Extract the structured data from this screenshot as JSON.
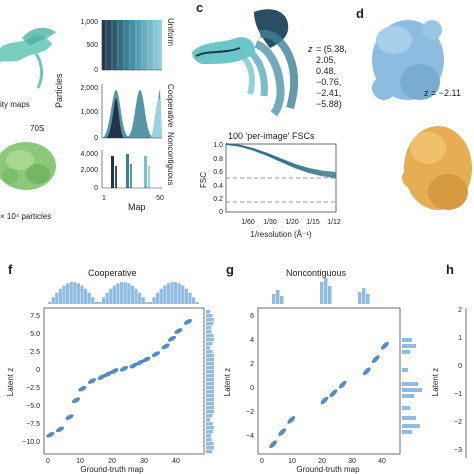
{
  "panels": {
    "b": {
      "ylabel": "Particles",
      "xlabel": "Map",
      "row_labels": [
        "Uniform",
        "Cooperative",
        "Noncontiguous"
      ],
      "uniform_ticks": [
        "1,000",
        "500",
        "0"
      ],
      "cooperative_ticks": [
        "2,000",
        "1,000",
        "0"
      ],
      "noncontiguous_ticks": [
        "4,000",
        "2,000",
        "0"
      ],
      "x_ticks": [
        "1",
        "50"
      ]
    },
    "a_partial": {
      "text_maps": "ity maps",
      "text_70s": "70S",
      "text_particles": "× 10⁴ particles"
    },
    "c": {
      "letter": "c",
      "z_label": "z",
      "z_values": "= (5.38,\n2.05,\n0.48,\n−0.76,\n−2.41,\n−5.88)",
      "fsc_title": "100 'per-image' FSCs",
      "fsc_ylabel": "FSC",
      "fsc_xlabel": "1/resolution (Å⁻¹)",
      "fsc_yticks": [
        "1.0",
        "0.8",
        "0.6",
        "0.4",
        "0.2",
        "0"
      ],
      "fsc_xticks": [
        "1/60",
        "1/30",
        "1/20",
        "1/15",
        "1/12"
      ]
    },
    "d": {
      "letter": "d",
      "z_text": "z = −2.11"
    },
    "f": {
      "letter": "f",
      "title": "Cooperative",
      "ylabel": "Latent z",
      "xlabel": "Ground-truth map",
      "yticks": [
        "7.5",
        "5.0",
        "2.5",
        "0",
        "−2.5",
        "−5.0",
        "−7.5",
        "−10.0"
      ],
      "xticks": [
        "0",
        "10",
        "20",
        "30",
        "40"
      ]
    },
    "g": {
      "letter": "g",
      "title": "Noncontiguous",
      "ylabel": "Latent z",
      "xlabel": "Ground-truth map",
      "yticks": [
        "6",
        "4",
        "2",
        "0",
        "−2",
        "−4"
      ],
      "xticks": [
        "0",
        "10",
        "20",
        "30",
        "40"
      ]
    },
    "h": {
      "letter": "h",
      "ylabel": "Latent z",
      "yticks": [
        "2",
        "1",
        "0",
        "−1",
        "−2",
        "−3"
      ]
    }
  },
  "chart_data": [
    {
      "type": "scatter",
      "title": "Cooperative",
      "xlabel": "Ground-truth map",
      "ylabel": "Latent z",
      "xlim": [
        0,
        50
      ],
      "ylim": [
        -11,
        8
      ],
      "x": [
        2,
        5,
        8,
        10,
        12,
        15,
        18,
        20,
        22,
        25,
        28,
        30,
        32,
        35,
        38,
        40,
        42,
        45
      ],
      "y": [
        -8.5,
        -7.8,
        -6.2,
        -4.0,
        -2.5,
        -1.5,
        -1.0,
        -0.6,
        -0.2,
        0.1,
        0.5,
        0.9,
        1.3,
        2.0,
        3.0,
        4.0,
        5.0,
        6.2
      ],
      "color": "#3a78b4"
    },
    {
      "type": "scatter",
      "title": "Noncontiguous",
      "xlabel": "Ground-truth map",
      "ylabel": "Latent z",
      "xlim": [
        0,
        47
      ],
      "ylim": [
        -5,
        7
      ],
      "x": [
        5,
        8,
        11,
        22,
        25,
        28,
        36,
        39,
        42
      ],
      "y": [
        -4.2,
        -3.2,
        -2.2,
        -0.6,
        0.0,
        0.7,
        1.8,
        2.8,
        3.9
      ],
      "color": "#3a78b4"
    },
    {
      "type": "line",
      "title": "100 'per-image' FSCs",
      "xlabel": "1/resolution (Å⁻¹)",
      "ylabel": "FSC",
      "ylim": [
        0,
        1.0
      ],
      "x": [
        0,
        1,
        2,
        3,
        4,
        5,
        6,
        7,
        8
      ],
      "y": [
        1.0,
        0.98,
        0.93,
        0.86,
        0.78,
        0.7,
        0.64,
        0.6,
        0.58
      ],
      "color": "#2d6f86"
    }
  ]
}
